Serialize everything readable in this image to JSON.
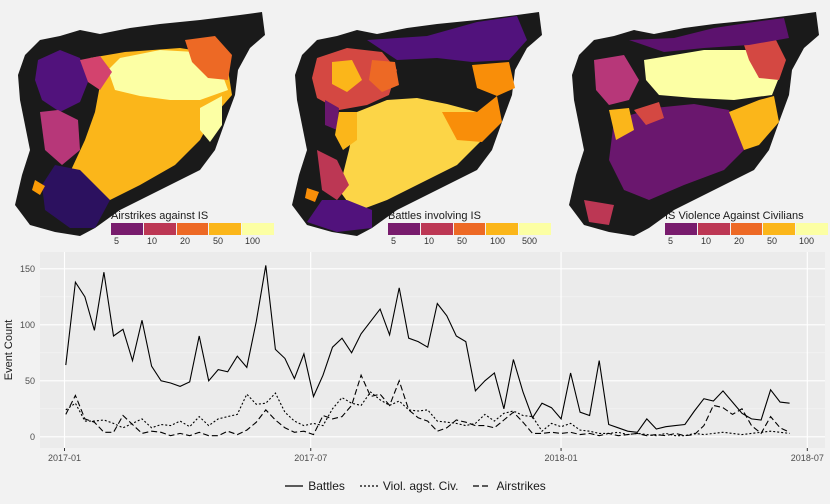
{
  "maps": [
    {
      "legend_title": "Airstrikes against IS",
      "legend_ticks": [
        "5",
        "10",
        "20",
        "50",
        "100"
      ],
      "legend_colors": [
        "#781c6d",
        "#bc3754",
        "#ed6925",
        "#fbb61a",
        "#fcffa4"
      ]
    },
    {
      "legend_title": "Battles involving IS",
      "legend_ticks": [
        "5",
        "10",
        "50",
        "100",
        "500"
      ],
      "legend_colors": [
        "#781c6d",
        "#bc3754",
        "#ed6925",
        "#fbb61a",
        "#fcffa4"
      ]
    },
    {
      "legend_title": "IS Violence Against Civilians",
      "legend_ticks": [
        "5",
        "10",
        "20",
        "50",
        "100"
      ],
      "legend_colors": [
        "#781c6d",
        "#bc3754",
        "#ed6925",
        "#fbb61a",
        "#fcffa4"
      ]
    }
  ],
  "chart_data": {
    "type": "line",
    "ylabel": "Event Count",
    "xlabel": "",
    "x_ticks": [
      "2017-01",
      "2017-07",
      "2018-01",
      "2018-07"
    ],
    "y_ticks": [
      0,
      50,
      100,
      150
    ],
    "ylim": [
      -10,
      165
    ],
    "xlim": [
      "2016-12-14",
      "2018-07-14"
    ],
    "grid": true,
    "legend_position": "bottom",
    "x": [
      "2017-01-02",
      "2017-01-09",
      "2017-01-16",
      "2017-01-23",
      "2017-01-30",
      "2017-02-06",
      "2017-02-13",
      "2017-02-20",
      "2017-02-27",
      "2017-03-06",
      "2017-03-13",
      "2017-03-20",
      "2017-03-27",
      "2017-04-03",
      "2017-04-10",
      "2017-04-17",
      "2017-04-24",
      "2017-05-01",
      "2017-05-08",
      "2017-05-15",
      "2017-05-22",
      "2017-05-29",
      "2017-06-05",
      "2017-06-12",
      "2017-06-19",
      "2017-06-26",
      "2017-07-03",
      "2017-07-10",
      "2017-07-17",
      "2017-07-24",
      "2017-07-31",
      "2017-08-07",
      "2017-08-14",
      "2017-08-21",
      "2017-08-28",
      "2017-09-04",
      "2017-09-11",
      "2017-09-18",
      "2017-09-25",
      "2017-10-02",
      "2017-10-09",
      "2017-10-16",
      "2017-10-23",
      "2017-10-30",
      "2017-11-06",
      "2017-11-13",
      "2017-11-20",
      "2017-11-27",
      "2017-12-04",
      "2017-12-11",
      "2017-12-18",
      "2017-12-25",
      "2018-01-01",
      "2018-01-08",
      "2018-01-15",
      "2018-01-22",
      "2018-01-29",
      "2018-02-05",
      "2018-02-12",
      "2018-02-19",
      "2018-02-26",
      "2018-03-05",
      "2018-03-12",
      "2018-03-19",
      "2018-03-26",
      "2018-04-02",
      "2018-04-09",
      "2018-04-16",
      "2018-04-23",
      "2018-04-30",
      "2018-05-07",
      "2018-05-14",
      "2018-05-21",
      "2018-05-28",
      "2018-06-04",
      "2018-06-11",
      "2018-06-18"
    ],
    "series": [
      {
        "name": "Battles",
        "dash": "",
        "values": [
          64,
          138,
          125,
          95,
          147,
          90,
          96,
          68,
          104,
          63,
          50,
          48,
          45,
          49,
          90,
          50,
          60,
          58,
          72,
          62,
          103,
          153,
          78,
          70,
          52,
          74,
          36,
          55,
          80,
          88,
          75,
          92,
          103,
          114,
          91,
          133,
          88,
          85,
          80,
          119,
          108,
          90,
          85,
          41,
          50,
          57,
          25,
          69,
          40,
          17,
          30,
          26,
          16,
          57,
          22,
          19,
          68,
          11,
          8,
          5,
          4,
          16,
          7,
          9,
          10,
          11,
          23,
          34,
          32,
          41,
          31,
          21,
          16,
          15,
          42,
          31,
          30
        ]
      },
      {
        "name": "Viol. agst. Civ.",
        "dash": "2,2",
        "values": [
          24,
          30,
          14,
          14,
          15,
          12,
          8,
          12,
          16,
          8,
          11,
          10,
          14,
          9,
          18,
          10,
          16,
          18,
          20,
          38,
          29,
          30,
          39,
          22,
          14,
          10,
          12,
          10,
          25,
          35,
          30,
          28,
          40,
          33,
          28,
          32,
          24,
          23,
          24,
          14,
          13,
          12,
          10,
          12,
          20,
          14,
          21,
          23,
          19,
          18,
          5,
          12,
          9,
          12,
          6,
          5,
          3,
          3,
          4,
          2,
          3,
          2,
          1,
          3,
          1,
          1,
          3,
          2,
          3,
          4,
          3,
          2,
          3,
          4,
          5,
          4,
          3
        ]
      },
      {
        "name": "Airstrikes",
        "dash": "6,3",
        "values": [
          20,
          37,
          16,
          13,
          4,
          4,
          19,
          11,
          3,
          5,
          4,
          1,
          3,
          1,
          4,
          1,
          1,
          5,
          2,
          6,
          13,
          24,
          15,
          8,
          4,
          5,
          2,
          19,
          16,
          18,
          28,
          55,
          36,
          38,
          28,
          50,
          24,
          17,
          14,
          5,
          8,
          15,
          13,
          10,
          10,
          8,
          15,
          22,
          13,
          3,
          3,
          4,
          3,
          4,
          2,
          3,
          1,
          3,
          1,
          2,
          3,
          1,
          2,
          1,
          3,
          1,
          2,
          10,
          28,
          26,
          20,
          25,
          10,
          3,
          18,
          8,
          4
        ]
      }
    ]
  }
}
